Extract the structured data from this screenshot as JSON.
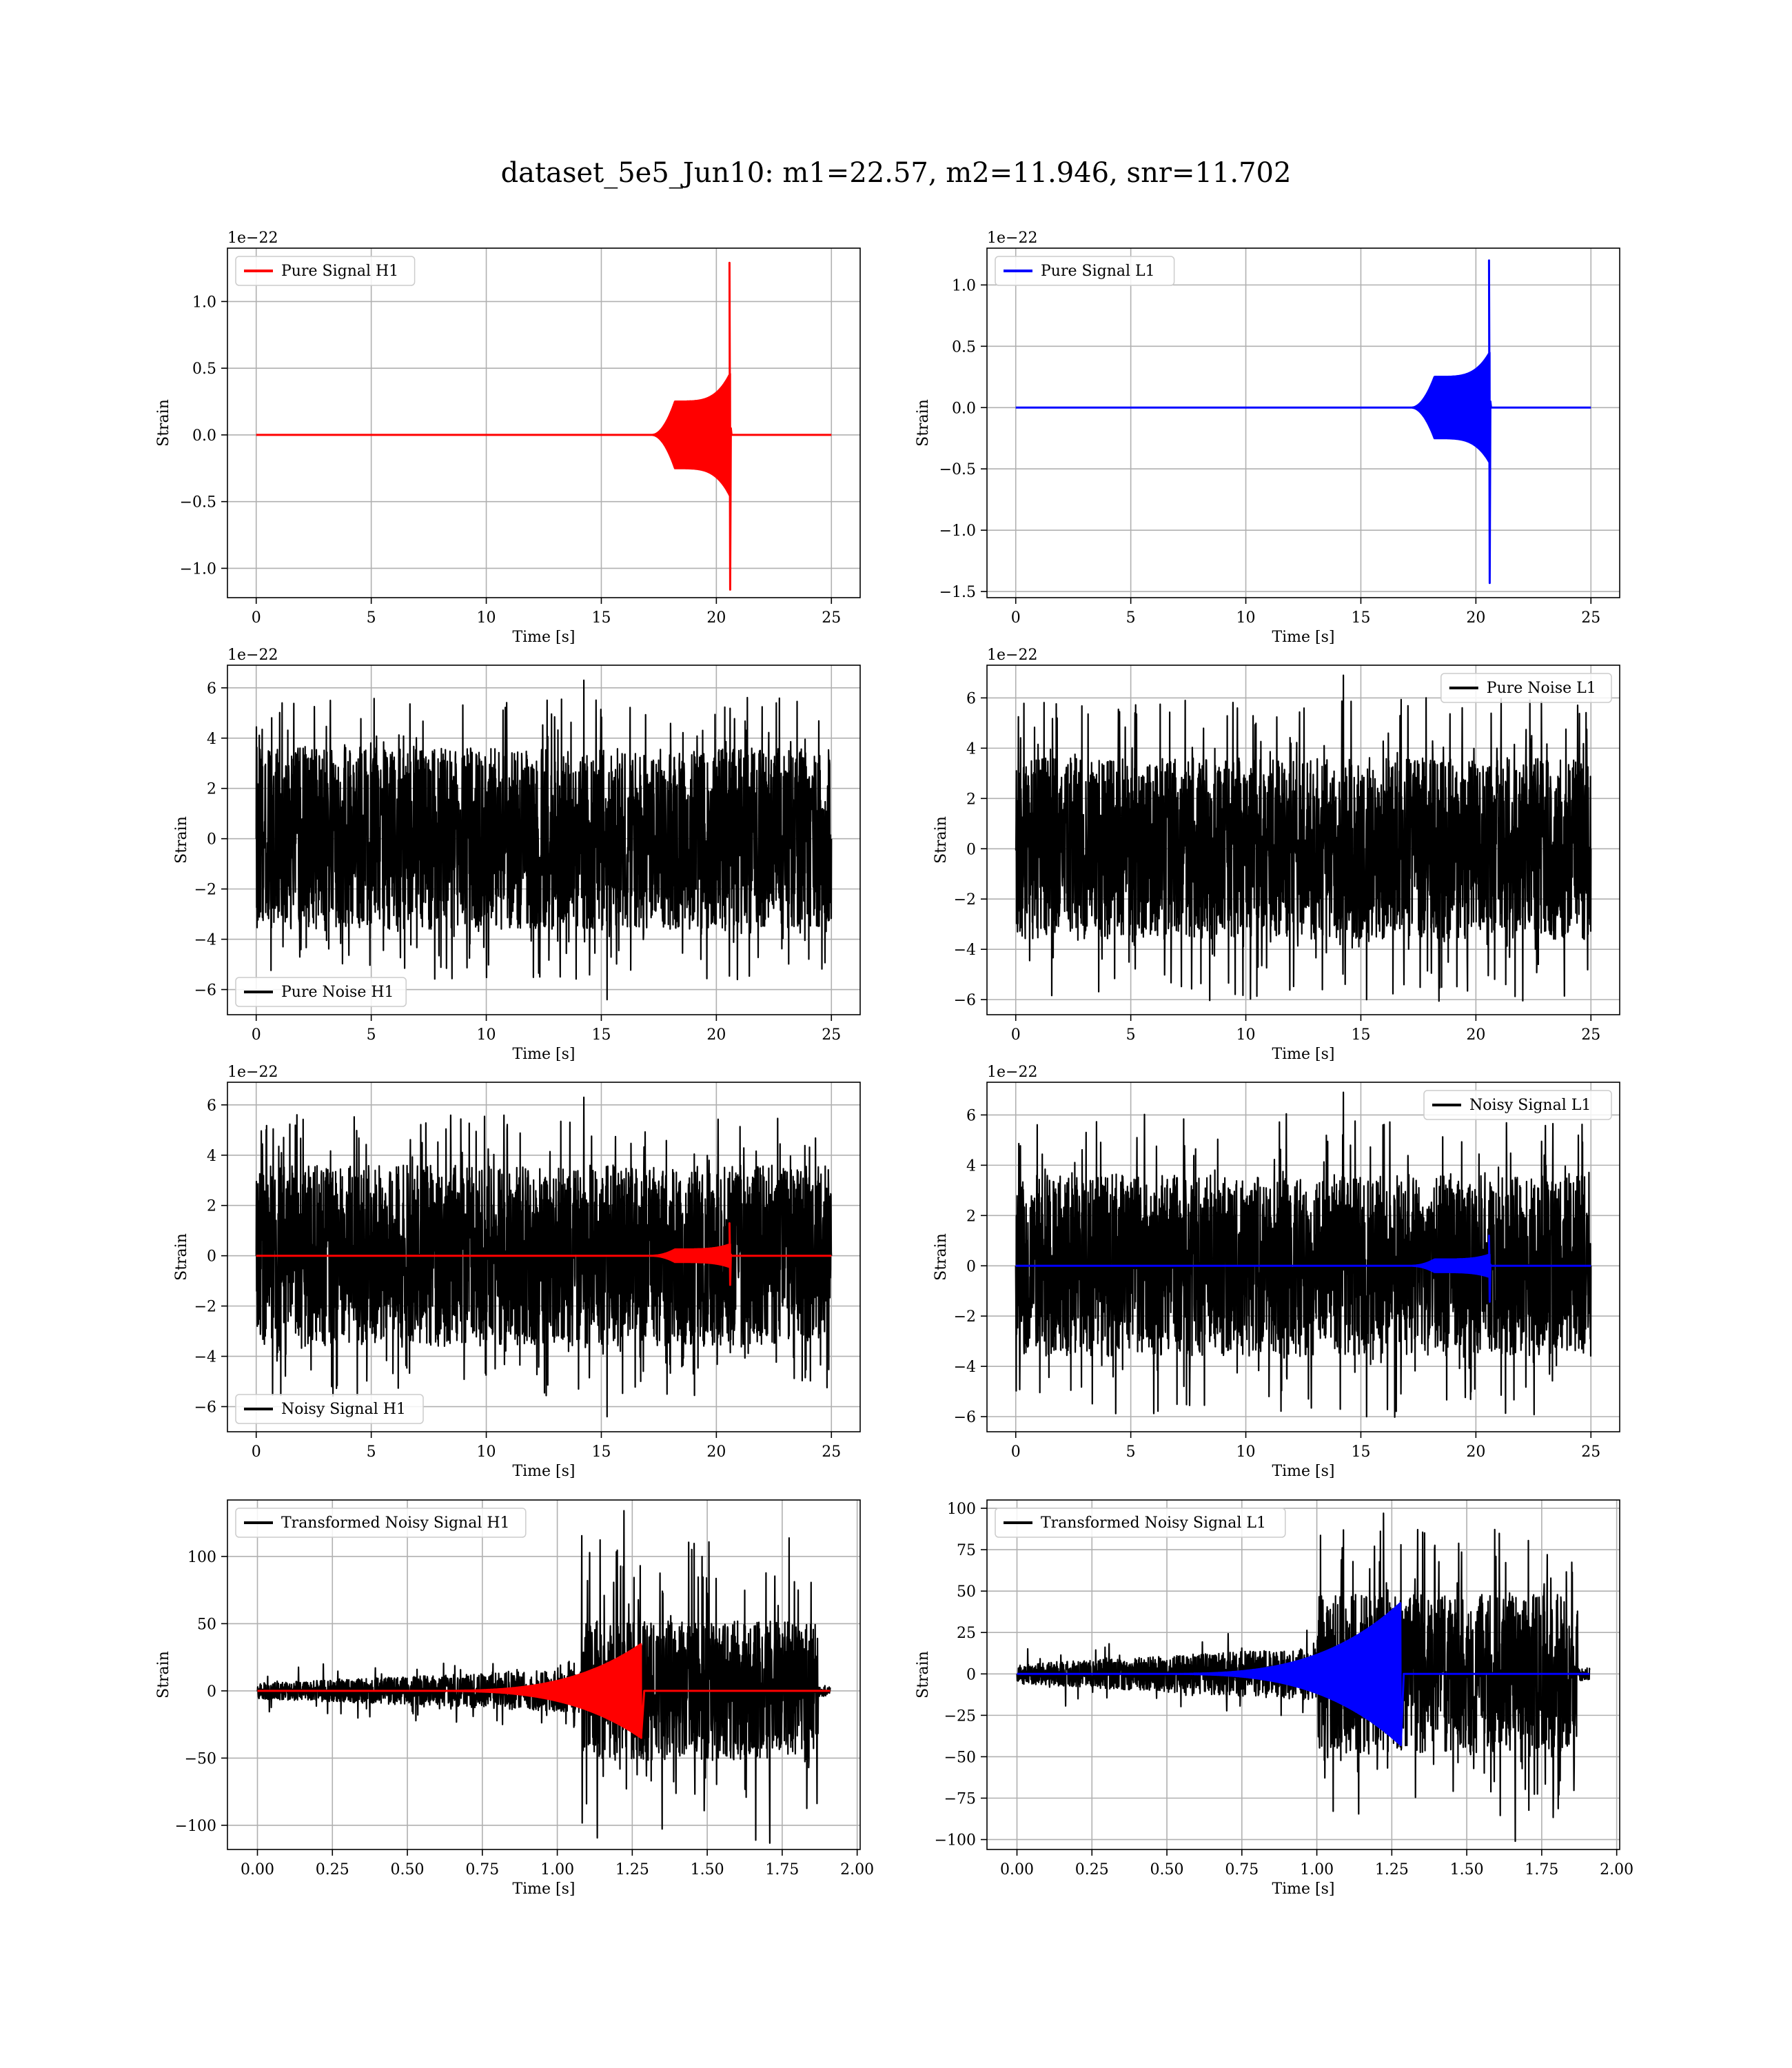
{
  "figure": {
    "title": "dataset_5e5_Jun10: m1=22.57, m2=11.946, snr=11.702"
  },
  "colors": {
    "h1": "#ff0000",
    "l1": "#0000ff",
    "noise": "#000000",
    "grid": "#b0b0b0"
  },
  "chart_data": [
    {
      "type": "line",
      "title": "",
      "xlabel": "Time [s]",
      "ylabel": "Strain",
      "xlim": [
        -1.25,
        26.25
      ],
      "ylim": [
        -1.22,
        1.4
      ],
      "offset_text": "1e−22",
      "xticks": [
        0,
        5,
        10,
        15,
        20,
        25
      ],
      "xtick_labels": [
        "0",
        "5",
        "10",
        "15",
        "20",
        "25"
      ],
      "yticks": [
        -1.0,
        -0.5,
        0.0,
        0.5,
        1.0
      ],
      "ytick_labels": [
        "−1.0",
        "−0.5",
        "0.0",
        "0.5",
        "1.0"
      ],
      "grid": true,
      "legend": "top-left",
      "series": [
        {
          "name": "Pure Signal H1",
          "kind": "chirp",
          "color": "#ff0000",
          "x_range": [
            0,
            25
          ],
          "onset": 17.2,
          "shoulder": 18.2,
          "shoulder_amp": 0.25,
          "merger": 20.6,
          "plateau_peak": 0.46,
          "peak_pos": 1.29,
          "peak_neg": -1.16
        }
      ]
    },
    {
      "type": "line",
      "title": "",
      "xlabel": "Time [s]",
      "ylabel": "Strain",
      "xlim": [
        -1.25,
        26.25
      ],
      "ylim": [
        -1.55,
        1.3
      ],
      "offset_text": "1e−22",
      "xticks": [
        0,
        5,
        10,
        15,
        20,
        25
      ],
      "xtick_labels": [
        "0",
        "5",
        "10",
        "15",
        "20",
        "25"
      ],
      "yticks": [
        -1.5,
        -1.0,
        -0.5,
        0.0,
        0.5,
        1.0
      ],
      "ytick_labels": [
        "−1.5",
        "−1.0",
        "−0.5",
        "0.0",
        "0.5",
        "1.0"
      ],
      "grid": true,
      "legend": "top-left",
      "series": [
        {
          "name": "Pure Signal L1",
          "kind": "chirp",
          "color": "#0000ff",
          "x_range": [
            0,
            25
          ],
          "onset": 17.2,
          "shoulder": 18.2,
          "shoulder_amp": 0.25,
          "merger": 20.6,
          "plateau_peak": 0.45,
          "peak_pos": 1.2,
          "peak_neg": -1.43
        }
      ]
    },
    {
      "type": "line",
      "title": "",
      "xlabel": "Time [s]",
      "ylabel": "Strain",
      "xlim": [
        -1.25,
        26.25
      ],
      "ylim": [
        -7.0,
        6.9
      ],
      "offset_text": "1e−22",
      "xticks": [
        0,
        5,
        10,
        15,
        20,
        25
      ],
      "xtick_labels": [
        "0",
        "5",
        "10",
        "15",
        "20",
        "25"
      ],
      "yticks": [
        -6,
        -4,
        -2,
        0,
        2,
        4,
        6
      ],
      "ytick_labels": [
        "−6",
        "−4",
        "−2",
        "0",
        "2",
        "4",
        "6"
      ],
      "grid": true,
      "legend": "bottom-left",
      "series": [
        {
          "name": "Pure Noise H1",
          "kind": "noise",
          "color": "#000000",
          "x_range": [
            0,
            25
          ],
          "band": 3.6,
          "spike_max": 6.3,
          "spike_min": -6.4
        }
      ]
    },
    {
      "type": "line",
      "title": "",
      "xlabel": "Time [s]",
      "ylabel": "Strain",
      "xlim": [
        -1.25,
        26.25
      ],
      "ylim": [
        -6.6,
        7.3
      ],
      "offset_text": "1e−22",
      "xticks": [
        0,
        5,
        10,
        15,
        20,
        25
      ],
      "xtick_labels": [
        "0",
        "5",
        "10",
        "15",
        "20",
        "25"
      ],
      "yticks": [
        -6,
        -4,
        -2,
        0,
        2,
        4,
        6
      ],
      "ytick_labels": [
        "−6",
        "−4",
        "−2",
        "0",
        "2",
        "4",
        "6"
      ],
      "grid": true,
      "legend": "top-right",
      "series": [
        {
          "name": "Pure Noise L1",
          "kind": "noise",
          "color": "#000000",
          "x_range": [
            0,
            25
          ],
          "band": 3.6,
          "spike_max": 6.9,
          "spike_min": -6.0
        }
      ]
    },
    {
      "type": "line",
      "title": "",
      "xlabel": "Time [s]",
      "ylabel": "Strain",
      "xlim": [
        -1.25,
        26.25
      ],
      "ylim": [
        -7.0,
        6.9
      ],
      "offset_text": "1e−22",
      "xticks": [
        0,
        5,
        10,
        15,
        20,
        25
      ],
      "xtick_labels": [
        "0",
        "5",
        "10",
        "15",
        "20",
        "25"
      ],
      "yticks": [
        -6,
        -4,
        -2,
        0,
        2,
        4,
        6
      ],
      "ytick_labels": [
        "−6",
        "−4",
        "−2",
        "0",
        "2",
        "4",
        "6"
      ],
      "grid": true,
      "legend": "bottom-left",
      "series": [
        {
          "name": "Noisy Signal H1",
          "kind": "noise",
          "color": "#000000",
          "x_range": [
            0,
            25
          ],
          "band": 3.6,
          "spike_max": 6.3,
          "spike_min": -6.4
        },
        {
          "name": "",
          "kind": "chirp",
          "color": "#ff0000",
          "x_range": [
            0,
            25
          ],
          "onset": 17.2,
          "shoulder": 18.2,
          "shoulder_amp": 0.25,
          "merger": 20.6,
          "plateau_peak": 0.46,
          "peak_pos": 1.29,
          "peak_neg": -1.16
        }
      ]
    },
    {
      "type": "line",
      "title": "",
      "xlabel": "Time [s]",
      "ylabel": "Strain",
      "xlim": [
        -1.25,
        26.25
      ],
      "ylim": [
        -6.6,
        7.3
      ],
      "offset_text": "1e−22",
      "xticks": [
        0,
        5,
        10,
        15,
        20,
        25
      ],
      "xtick_labels": [
        "0",
        "5",
        "10",
        "15",
        "20",
        "25"
      ],
      "yticks": [
        -6,
        -4,
        -2,
        0,
        2,
        4,
        6
      ],
      "ytick_labels": [
        "−6",
        "−4",
        "−2",
        "0",
        "2",
        "4",
        "6"
      ],
      "grid": true,
      "legend": "top-right",
      "series": [
        {
          "name": "Noisy Signal L1",
          "kind": "noise",
          "color": "#000000",
          "x_range": [
            0,
            25
          ],
          "band": 3.6,
          "spike_max": 6.9,
          "spike_min": -6.0
        },
        {
          "name": "",
          "kind": "chirp",
          "color": "#0000ff",
          "x_range": [
            0,
            25
          ],
          "onset": 17.2,
          "shoulder": 18.2,
          "shoulder_amp": 0.25,
          "merger": 20.6,
          "plateau_peak": 0.45,
          "peak_pos": 1.2,
          "peak_neg": -1.43
        }
      ]
    },
    {
      "type": "line",
      "title": "",
      "xlabel": "Time [s]",
      "ylabel": "Strain",
      "xlim": [
        -0.1,
        2.01
      ],
      "ylim": [
        -118,
        142
      ],
      "offset_text": "",
      "xticks": [
        0,
        0.25,
        0.5,
        0.75,
        1.0,
        1.25,
        1.5,
        1.75,
        2.0
      ],
      "xtick_labels": [
        "0.00",
        "0.25",
        "0.50",
        "0.75",
        "1.00",
        "1.25",
        "1.50",
        "1.75",
        "2.00"
      ],
      "yticks": [
        -100,
        -50,
        0,
        50,
        100
      ],
      "ytick_labels": [
        "−100",
        "−50",
        "0",
        "50",
        "100"
      ],
      "grid": true,
      "legend": "top-left",
      "series": [
        {
          "name": "Transformed Noisy Signal H1",
          "kind": "tnoise",
          "color": "#000000",
          "x_range": [
            0,
            1.91
          ],
          "rise_start": 1.08,
          "end": 1.87,
          "low_band": 6,
          "high_band": 52,
          "spike_max": 134,
          "spike_min": -111
        },
        {
          "name": "",
          "kind": "tchirp",
          "color": "#ff0000",
          "x_range": [
            0,
            1.91
          ],
          "onset": 0.55,
          "merger": 1.28,
          "peak_pos": 35,
          "peak_neg": -33
        }
      ]
    },
    {
      "type": "line",
      "title": "",
      "xlabel": "Time [s]",
      "ylabel": "Strain",
      "xlim": [
        -0.1,
        2.01
      ],
      "ylim": [
        -106,
        105
      ],
      "offset_text": "",
      "xticks": [
        0,
        0.25,
        0.5,
        0.75,
        1.0,
        1.25,
        1.5,
        1.75,
        2.0
      ],
      "xtick_labels": [
        "0.00",
        "0.25",
        "0.50",
        "0.75",
        "1.00",
        "1.25",
        "1.50",
        "1.75",
        "2.00"
      ],
      "yticks": [
        -100,
        -75,
        -50,
        -25,
        0,
        25,
        50,
        75,
        100
      ],
      "ytick_labels": [
        "−100",
        "−75",
        "−50",
        "−25",
        "0",
        "25",
        "50",
        "75",
        "100"
      ],
      "grid": true,
      "legend": "top-left",
      "series": [
        {
          "name": "Transformed Noisy Signal L1",
          "kind": "tnoise",
          "color": "#000000",
          "x_range": [
            0,
            1.91
          ],
          "rise_start": 1.0,
          "end": 1.87,
          "low_band": 6,
          "high_band": 48,
          "spike_max": 97,
          "spike_min": -101
        },
        {
          "name": "",
          "kind": "tchirp",
          "color": "#0000ff",
          "x_range": [
            0,
            1.91
          ],
          "onset": 0.45,
          "merger": 1.28,
          "peak_pos": 35,
          "peak_neg": -43
        }
      ]
    }
  ]
}
